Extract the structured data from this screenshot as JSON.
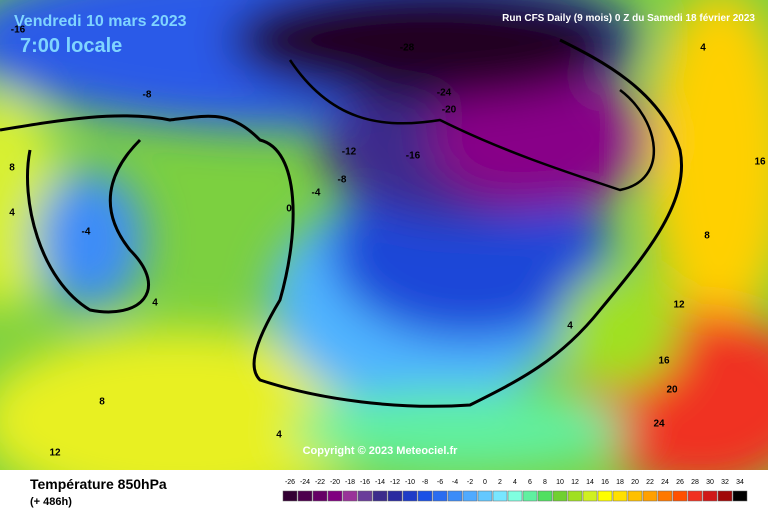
{
  "header": {
    "title": "Vendredi 10 mars 2023",
    "time": "7:00 locale",
    "run": "Run CFS Daily (9 mois) 0 Z du Samedi 18 février 2023"
  },
  "map": {
    "contour_labels": [
      -16,
      -28,
      4,
      -8,
      -24,
      -20,
      -12,
      -16,
      8,
      16,
      -8,
      -4,
      0,
      4,
      -4,
      8,
      4,
      12,
      4,
      16,
      20,
      8,
      24,
      4,
      12
    ],
    "copyright": "Copyright © 2023 Meteociel.fr"
  },
  "footer": {
    "variable": "Température 850hPa",
    "lead": "(+ 486h)"
  },
  "colorbar": {
    "values": [
      -26,
      -24,
      -22,
      -20,
      -18,
      -16,
      -14,
      -12,
      -10,
      -8,
      -6,
      -4,
      -2,
      0,
      2,
      4,
      6,
      8,
      10,
      12,
      14,
      16,
      18,
      20,
      22,
      24,
      26,
      28,
      30,
      32,
      34
    ],
    "colors": [
      "#330033",
      "#4d004d",
      "#660066",
      "#800080",
      "#993399",
      "#6a3d9a",
      "#3c2c8c",
      "#2a2aa0",
      "#1e3cc8",
      "#1a50e6",
      "#2a6cf0",
      "#3c8cf8",
      "#50aaff",
      "#64c8ff",
      "#78e6ff",
      "#80ffe0",
      "#60f0a0",
      "#50e060",
      "#70d030",
      "#a0e020",
      "#d0f020",
      "#ffff00",
      "#ffe000",
      "#ffc000",
      "#ffa000",
      "#ff7800",
      "#ff5000",
      "#f03020",
      "#d01818",
      "#a00808",
      "#000000"
    ]
  }
}
